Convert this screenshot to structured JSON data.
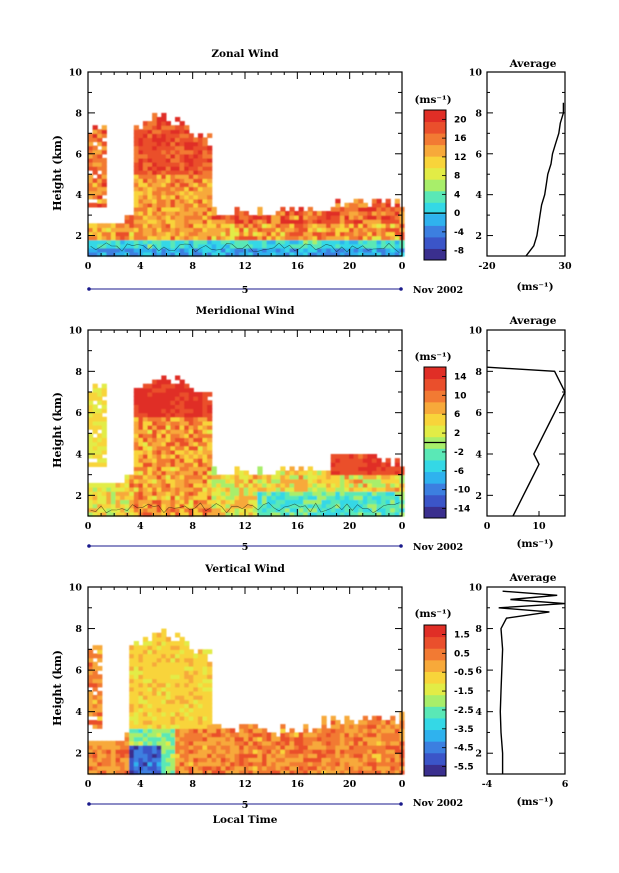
{
  "date_label": "Nov 2002",
  "day_label": "5",
  "x_title": "Local Time",
  "unit_label": "(ms⁻¹)",
  "average_title": "Average",
  "height_label": "Height (km)",
  "x_ticks": [
    "0",
    "4",
    "8",
    "12",
    "16",
    "20",
    "0"
  ],
  "colors": [
    "#3a2f8e",
    "#3b55c8",
    "#3c7fe0",
    "#2fb2ee",
    "#34d8e6",
    "#5ae8b6",
    "#a8ee6a",
    "#e2ec46",
    "#f8d43a",
    "#f7a93a",
    "#f27a33",
    "#ea4f2c",
    "#e02e26"
  ],
  "chart_data": [
    {
      "type": "heatmap",
      "title": "Zonal Wind",
      "xlabel": "",
      "ylabel": "Height (km)",
      "xlim": [
        0,
        24
      ],
      "ylim": [
        1,
        10
      ],
      "y_ticks": [
        "2",
        "4",
        "6",
        "8",
        "10"
      ],
      "colorbar_ticks": [
        "20",
        "16",
        "12",
        "8",
        "4",
        "0",
        "-4",
        "-8"
      ],
      "colorbar_range": [
        -10,
        22
      ],
      "average_profile": {
        "xlim": [
          -20,
          30
        ],
        "x_ticks": [
          "-20",
          "30"
        ],
        "y_ticks": [
          "2",
          "4",
          "6",
          "8",
          "10"
        ],
        "heights": [
          1.0,
          1.5,
          2,
          2.5,
          3,
          3.5,
          4,
          4.5,
          5,
          5.5,
          6,
          6.5,
          7,
          7.5,
          8,
          8.5
        ],
        "values": [
          5,
          10,
          12,
          13,
          14,
          15,
          17,
          18,
          19,
          21,
          22,
          24,
          26,
          27,
          29,
          29
        ]
      }
    },
    {
      "type": "heatmap",
      "title": "Meridional Wind",
      "xlabel": "",
      "ylabel": "Height (km)",
      "xlim": [
        0,
        24
      ],
      "ylim": [
        1,
        10
      ],
      "y_ticks": [
        "2",
        "4",
        "6",
        "8",
        "10"
      ],
      "colorbar_ticks": [
        "14",
        "10",
        "6",
        "2",
        "-2",
        "-6",
        "-10",
        "-14"
      ],
      "colorbar_range": [
        -16,
        16
      ],
      "average_profile": {
        "xlim": [
          0,
          15
        ],
        "x_ticks": [
          "0",
          "10"
        ],
        "y_ticks": [
          "2",
          "4",
          "6",
          "8",
          "10"
        ],
        "heights": [
          1.0,
          1.5,
          2,
          2.5,
          3,
          3.5,
          4,
          4.5,
          5,
          5.5,
          6,
          6.5,
          7,
          7.5,
          8,
          8.2
        ],
        "values": [
          5,
          6,
          7,
          8,
          9,
          10,
          9,
          10,
          11,
          12,
          13,
          14,
          15,
          14,
          13,
          0
        ]
      }
    },
    {
      "type": "heatmap",
      "title": "Vertical Wind",
      "xlabel": "Local Time",
      "ylabel": "Height (km)",
      "xlim": [
        0,
        24
      ],
      "ylim": [
        1,
        10
      ],
      "y_ticks": [
        "2",
        "4",
        "6",
        "8",
        "10"
      ],
      "colorbar_ticks": [
        "1.5",
        "0.5",
        "-0.5",
        "-1.5",
        "-2.5",
        "-3.5",
        "-4.5",
        "-5.5"
      ],
      "colorbar_range": [
        -6,
        2
      ],
      "average_profile": {
        "xlim": [
          -4,
          6
        ],
        "x_ticks": [
          "-4",
          "6"
        ],
        "y_ticks": [
          "2",
          "4",
          "6",
          "8",
          "10"
        ],
        "heights": [
          1.0,
          2,
          3,
          4,
          5,
          6,
          7,
          8,
          8.5,
          8.8,
          9.0,
          9.2,
          9.4,
          9.6,
          9.8
        ],
        "values": [
          -2,
          -2,
          -2.2,
          -2.3,
          -2.2,
          -2.1,
          -2.0,
          -2.2,
          -1.5,
          4,
          -2.5,
          6,
          -1.0,
          5,
          -2
        ]
      }
    }
  ]
}
